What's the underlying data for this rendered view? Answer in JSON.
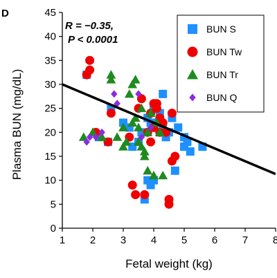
{
  "panel_label": "D",
  "annotations": {
    "r_value": "R = −0.35,",
    "p_value": "P < 0.0001"
  },
  "chart_data": {
    "type": "scatter",
    "xlabel": "Fetal weight (kg)",
    "ylabel": "Plasma BUN (mg/dL)",
    "xlim": [
      1,
      8
    ],
    "ylim": [
      0,
      45
    ],
    "xticks": [
      1,
      2,
      3,
      4,
      5,
      6,
      7,
      8
    ],
    "yticks": [
      0,
      5,
      10,
      15,
      20,
      25,
      30,
      35,
      40,
      45
    ],
    "grid": false,
    "legend_position": "top-right",
    "regression_line": {
      "x": [
        1,
        8
      ],
      "y": [
        30,
        11.3
      ],
      "color": "#000000"
    },
    "series": [
      {
        "name": "BUN S",
        "marker": "square",
        "color": "#1e90ff",
        "x": [
          1.8,
          2.2,
          2.5,
          2.6,
          3.0,
          3.2,
          3.3,
          3.6,
          3.7,
          3.8,
          3.8,
          3.9,
          4.0,
          4.0,
          4.1,
          4.2,
          4.2,
          4.3,
          4.3,
          4.4,
          4.5,
          4.6,
          4.7,
          4.8,
          5.0,
          5.0,
          5.1,
          5.2,
          5.6,
          3.5,
          3.9
        ],
        "y": [
          32,
          19,
          18,
          25,
          22,
          21,
          17,
          20,
          6,
          10,
          23,
          9,
          10,
          25,
          22,
          20,
          24,
          28,
          21,
          19,
          20,
          23,
          12,
          21,
          19,
          17,
          18,
          16,
          17,
          18,
          22
        ]
      },
      {
        "name": "BUN Tw",
        "marker": "circle",
        "color": "#ee0000",
        "x": [
          1.8,
          1.9,
          1.9,
          2.1,
          2.5,
          2.6,
          3.3,
          3.4,
          3.6,
          3.7,
          3.8,
          3.9,
          3.9,
          4.0,
          4.0,
          4.1,
          4.2,
          4.2,
          4.3,
          4.4,
          4.5,
          4.5,
          4.6,
          4.6,
          4.7,
          3.5,
          3.2,
          4.1
        ],
        "y": [
          32,
          35,
          33,
          20,
          18,
          24,
          9,
          7,
          27,
          7,
          20,
          24,
          18,
          21,
          26,
          25,
          23,
          20,
          22,
          20,
          6,
          5,
          14,
          24,
          15,
          25,
          19,
          26
        ]
      },
      {
        "name": "BUN Tr",
        "marker": "triangle",
        "color": "#1f8a1f",
        "x": [
          1.7,
          2.0,
          2.3,
          2.6,
          2.6,
          2.8,
          3.0,
          3.1,
          3.2,
          3.3,
          3.3,
          3.4,
          3.4,
          3.5,
          3.5,
          3.6,
          3.7,
          3.7,
          3.8,
          3.8,
          3.9,
          4.0,
          4.1,
          4.2,
          4.3,
          3.0,
          3.6
        ],
        "y": [
          19,
          20,
          19,
          31,
          32,
          19,
          21,
          18,
          28,
          30,
          22,
          31,
          23,
          21,
          18,
          17,
          15,
          16,
          12,
          20,
          24,
          11,
          22,
          20,
          11,
          17,
          25
        ]
      },
      {
        "name": "BUN Q",
        "marker": "diamond",
        "color": "#8a2be2",
        "x": [
          1.8,
          1.9,
          2.1,
          2.3,
          2.7,
          2.8,
          3.5,
          3.6,
          3.9
        ],
        "y": [
          18,
          19,
          19,
          20,
          28,
          26,
          28,
          19,
          21
        ]
      }
    ]
  }
}
